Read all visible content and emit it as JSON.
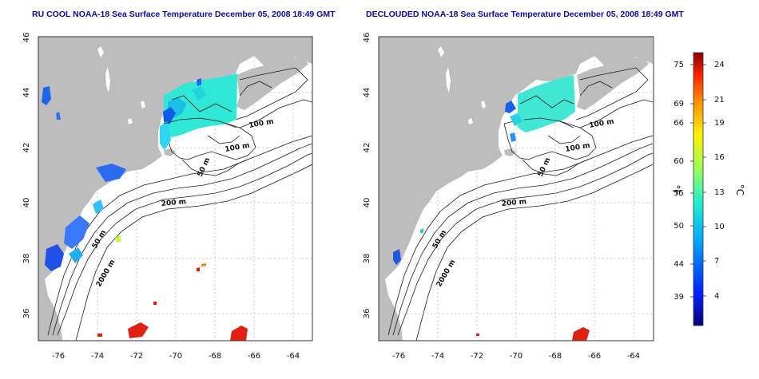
{
  "maps": [
    {
      "title": "RU COOL NOAA-18 Sea Surface Temperature December 05, 2008 18:49 GMT",
      "x_ticks": [
        "-76",
        "-74",
        "-72",
        "-70",
        "-68",
        "-66",
        "-64"
      ],
      "y_ticks": [
        "46",
        "44",
        "42",
        "40",
        "38",
        "36"
      ],
      "contour_labels": [
        "100 m",
        "100 m",
        "50 m",
        "200 m",
        "50 m",
        "2000 m"
      ]
    },
    {
      "title": "DECLOUDED NOAA-18 Sea Surface Temperature December 05, 2008 18:49 GMT",
      "x_ticks": [
        "-76",
        "-74",
        "-72",
        "-70",
        "-68",
        "-66",
        "-64"
      ],
      "y_ticks": [
        "46",
        "44",
        "42",
        "40",
        "38",
        "36"
      ],
      "contour_labels": [
        "100 m",
        "100 m",
        "50 m",
        "200 m",
        "50 m",
        "2000 m"
      ]
    }
  ],
  "colorbar": {
    "fahrenheit_label": "°F",
    "celsius_label": "°C",
    "fahrenheit_ticks": [
      "75",
      "69",
      "66",
      "60",
      "55",
      "50",
      "44",
      "39"
    ],
    "celsius_ticks": [
      "24",
      "21",
      "19",
      "16",
      "13",
      "10",
      "7",
      "4"
    ],
    "colors": [
      "#08007a",
      "#0022ff",
      "#00a0ff",
      "#20f0d0",
      "#a0ff50",
      "#fff000",
      "#ff9000",
      "#ff2000",
      "#8a0000"
    ]
  }
}
